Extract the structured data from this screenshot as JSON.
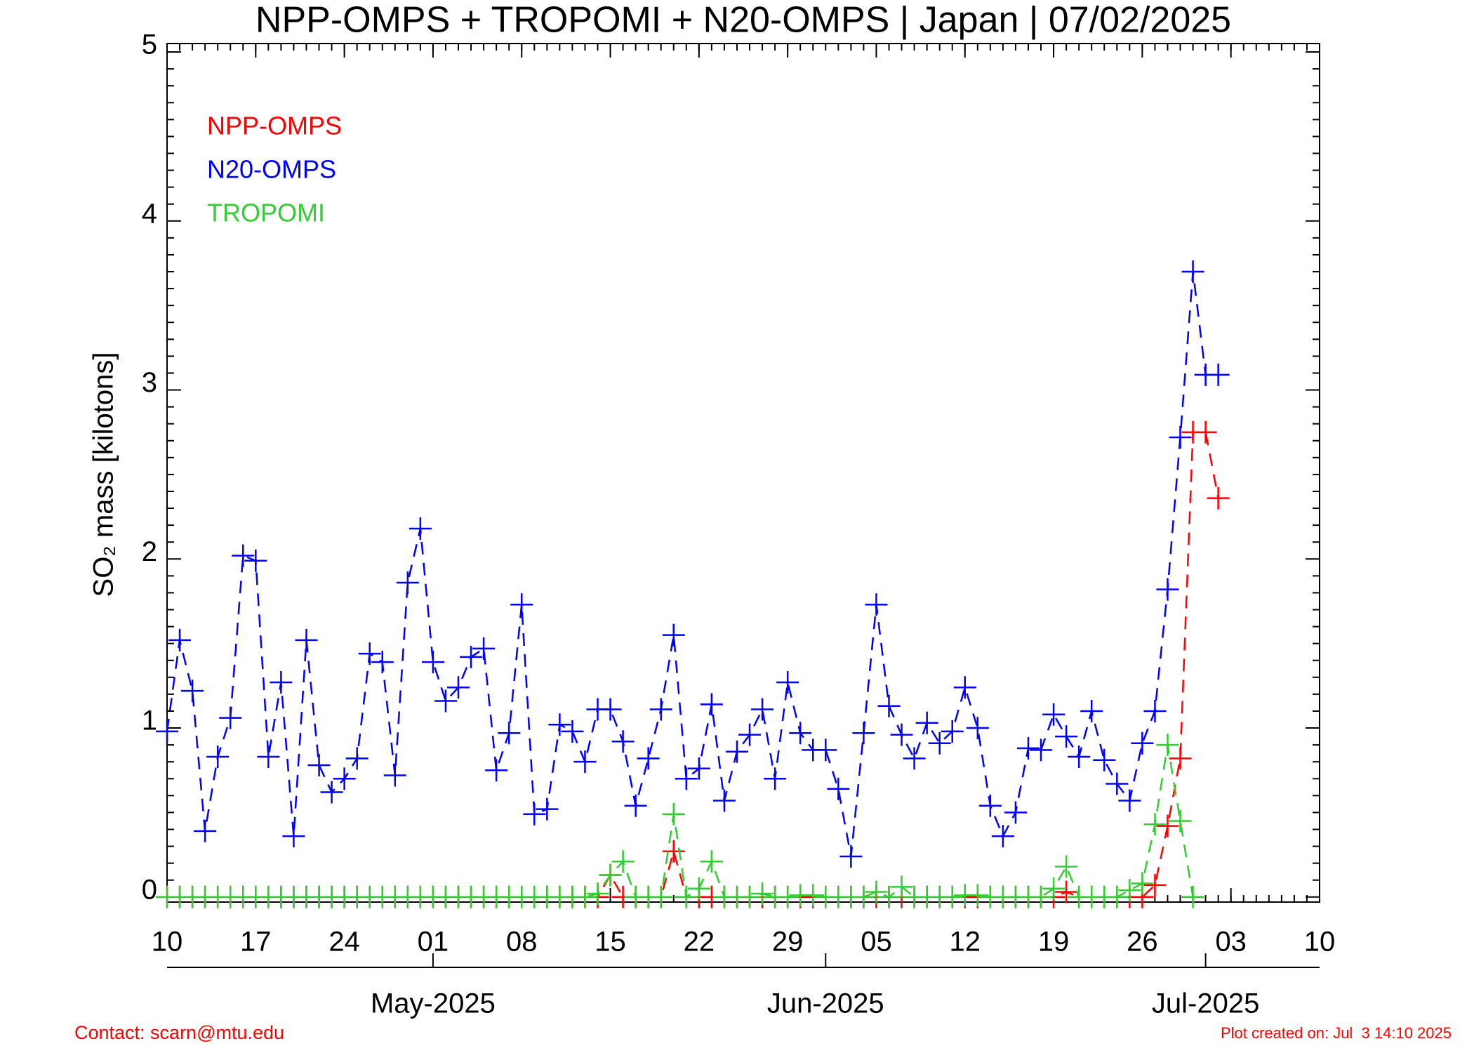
{
  "chart_data": {
    "type": "line",
    "title": "NPP-OMPS + TROPOMI + N20-OMPS | Japan | 07/02/2025",
    "y_label": "SO₂ mass [kilotons]",
    "contact": "Contact: scarn@mtu.edu",
    "created": "Plot created on: Jul  3 14:10 2025",
    "x": [
      "2025-04-10",
      "2025-04-11",
      "2025-04-12",
      "2025-04-13",
      "2025-04-14",
      "2025-04-15",
      "2025-04-16",
      "2025-04-17",
      "2025-04-18",
      "2025-04-19",
      "2025-04-20",
      "2025-04-21",
      "2025-04-22",
      "2025-04-23",
      "2025-04-24",
      "2025-04-25",
      "2025-04-26",
      "2025-04-27",
      "2025-04-28",
      "2025-04-29",
      "2025-04-30",
      "2025-05-01",
      "2025-05-02",
      "2025-05-03",
      "2025-05-04",
      "2025-05-05",
      "2025-05-06",
      "2025-05-07",
      "2025-05-08",
      "2025-05-09",
      "2025-05-10",
      "2025-05-11",
      "2025-05-12",
      "2025-05-13",
      "2025-05-14",
      "2025-05-15",
      "2025-05-16",
      "2025-05-17",
      "2025-05-18",
      "2025-05-19",
      "2025-05-20",
      "2025-05-21",
      "2025-05-22",
      "2025-05-23",
      "2025-05-24",
      "2025-05-25",
      "2025-05-26",
      "2025-05-27",
      "2025-05-28",
      "2025-05-29",
      "2025-05-30",
      "2025-05-31",
      "2025-06-01",
      "2025-06-02",
      "2025-06-03",
      "2025-06-04",
      "2025-06-05",
      "2025-06-06",
      "2025-06-07",
      "2025-06-08",
      "2025-06-09",
      "2025-06-10",
      "2025-06-11",
      "2025-06-12",
      "2025-06-13",
      "2025-06-14",
      "2025-06-15",
      "2025-06-16",
      "2025-06-17",
      "2025-06-18",
      "2025-06-19",
      "2025-06-20",
      "2025-06-21",
      "2025-06-22",
      "2025-06-23",
      "2025-06-24",
      "2025-06-25",
      "2025-06-26",
      "2025-06-27",
      "2025-06-28",
      "2025-06-29",
      "2025-06-30",
      "2025-07-01",
      "2025-07-02"
    ],
    "series": [
      {
        "name": "NPP-OMPS",
        "color": "#ff0000",
        "values": [
          0,
          0,
          0,
          0,
          0,
          0,
          0,
          0,
          0,
          0,
          0,
          0,
          0,
          0,
          0,
          0,
          0,
          0,
          0,
          0,
          0,
          0,
          0,
          0,
          0,
          0,
          0,
          0,
          0,
          0,
          0,
          0,
          0,
          0,
          0,
          0.13,
          0,
          0,
          0,
          0,
          0.27,
          0,
          0,
          0,
          0,
          0,
          0,
          0,
          0,
          0,
          0,
          0,
          0,
          0,
          0,
          0,
          0,
          0,
          0,
          0,
          0,
          0,
          0,
          0,
          0,
          0,
          0,
          0,
          0,
          0,
          0,
          0.03,
          0,
          0,
          0,
          0,
          0,
          0,
          0.07,
          0.42,
          0.82,
          2.75,
          2.75,
          2.36
        ]
      },
      {
        "name": "N20-OMPS",
        "color": "#0000ff",
        "values": [
          0.98,
          1.52,
          1.22,
          0.39,
          0.83,
          1.06,
          2.02,
          1.99,
          0.83,
          1.27,
          0.36,
          1.52,
          0.78,
          0.62,
          0.7,
          0.82,
          1.44,
          1.39,
          0.72,
          1.86,
          2.18,
          1.39,
          1.16,
          1.24,
          1.42,
          1.47,
          0.75,
          0.97,
          1.73,
          0.49,
          0.52,
          1.02,
          0.98,
          0.8,
          1.11,
          1.11,
          0.92,
          0.54,
          0.82,
          1.11,
          1.55,
          0.7,
          0.76,
          1.14,
          0.57,
          0.86,
          0.96,
          1.11,
          0.7,
          1.27,
          0.97,
          0.87,
          0.87,
          0.64,
          0.24,
          0.97,
          1.73,
          1.13,
          0.96,
          0.82,
          1.03,
          0.91,
          0.98,
          1.24,
          1.0,
          0.54,
          0.36,
          0.5,
          0.88,
          0.87,
          1.08,
          0.95,
          0.83,
          1.1,
          0.81,
          0.67,
          0.57,
          0.91,
          1.1,
          1.82,
          2.72,
          3.7,
          3.09,
          3.09
        ]
      },
      {
        "name": "TROPOMI",
        "color": "#33cc33",
        "values": [
          0,
          0,
          0,
          0,
          0,
          0,
          0,
          0,
          0,
          0,
          0,
          0,
          0,
          0,
          0,
          0,
          0,
          0,
          0,
          0,
          0,
          0,
          0,
          0,
          0,
          0,
          0,
          0,
          0,
          0,
          0,
          0,
          0,
          0,
          0.02,
          0.13,
          0.21,
          0,
          0,
          0,
          0.49,
          0,
          0.05,
          0.21,
          0,
          0,
          0,
          0.02,
          0,
          0,
          0.01,
          0.01,
          0,
          0,
          0,
          0,
          0.03,
          0,
          0.06,
          0,
          0,
          0,
          0,
          0.01,
          0.01,
          0,
          0,
          0,
          0,
          0,
          0.05,
          0.18,
          0,
          0,
          0,
          0,
          0.04,
          0.08,
          0.43,
          0.9,
          0.45,
          0,
          null,
          null
        ]
      }
    ],
    "xlim": [
      "2025-04-10",
      "2025-07-10"
    ],
    "xticks": [
      {
        "value": "2025-04-10",
        "label": "10"
      },
      {
        "value": "2025-04-17",
        "label": "17"
      },
      {
        "value": "2025-04-24",
        "label": "24"
      },
      {
        "value": "2025-05-01",
        "label": "01"
      },
      {
        "value": "2025-05-08",
        "label": "08"
      },
      {
        "value": "2025-05-15",
        "label": "15"
      },
      {
        "value": "2025-05-22",
        "label": "22"
      },
      {
        "value": "2025-05-29",
        "label": "29"
      },
      {
        "value": "2025-06-05",
        "label": "05"
      },
      {
        "value": "2025-06-12",
        "label": "12"
      },
      {
        "value": "2025-06-19",
        "label": "19"
      },
      {
        "value": "2025-06-26",
        "label": "26"
      },
      {
        "value": "2025-07-03",
        "label": "03"
      },
      {
        "value": "2025-07-10",
        "label": "10"
      }
    ],
    "month_ticks": [
      {
        "value": "2025-05-01",
        "label": "May-2025"
      },
      {
        "value": "2025-06-01",
        "label": "Jun-2025"
      },
      {
        "value": "2025-07-01",
        "label": "Jul-2025"
      }
    ],
    "ylim": [
      -0.03,
      5.05
    ],
    "yticks": [
      0,
      1,
      2,
      3,
      4,
      5
    ],
    "legend": "upper left",
    "marker": "plus",
    "linestyle": "dashed"
  }
}
